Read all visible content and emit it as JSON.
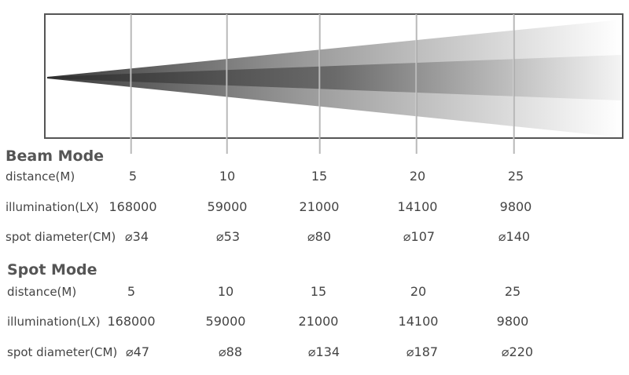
{
  "beam": {
    "title": "Beam Mode",
    "rows": [
      {
        "label": "distance(M)",
        "values": [
          "5",
          "10",
          "15",
          "20",
          "25"
        ]
      },
      {
        "label": "illumination(LX)",
        "values": [
          "168000",
          "59000",
          "21000",
          "14100",
          "9800"
        ]
      },
      {
        "label": "spot diameter(CM)",
        "values": [
          "34",
          "53",
          "80",
          "107",
          "140"
        ]
      }
    ]
  },
  "spot": {
    "title": "Spot Mode",
    "rows": [
      {
        "label": "distance(M)",
        "values": [
          "5",
          "10",
          "15",
          "20",
          "25"
        ]
      },
      {
        "label": "illumination(LX)",
        "values": [
          "168000",
          "59000",
          "21000",
          "14100",
          "9800"
        ]
      },
      {
        "label": "spot diameter(CM)",
        "values": [
          "47",
          "88",
          "134",
          "187",
          "220"
        ]
      }
    ]
  },
  "diameter_symbol": "⌀",
  "colors": {
    "frame": "#555555",
    "beam_dark": "#3a3a3a",
    "beam_light": "#ffffff",
    "marker": "#bbbbbb"
  }
}
